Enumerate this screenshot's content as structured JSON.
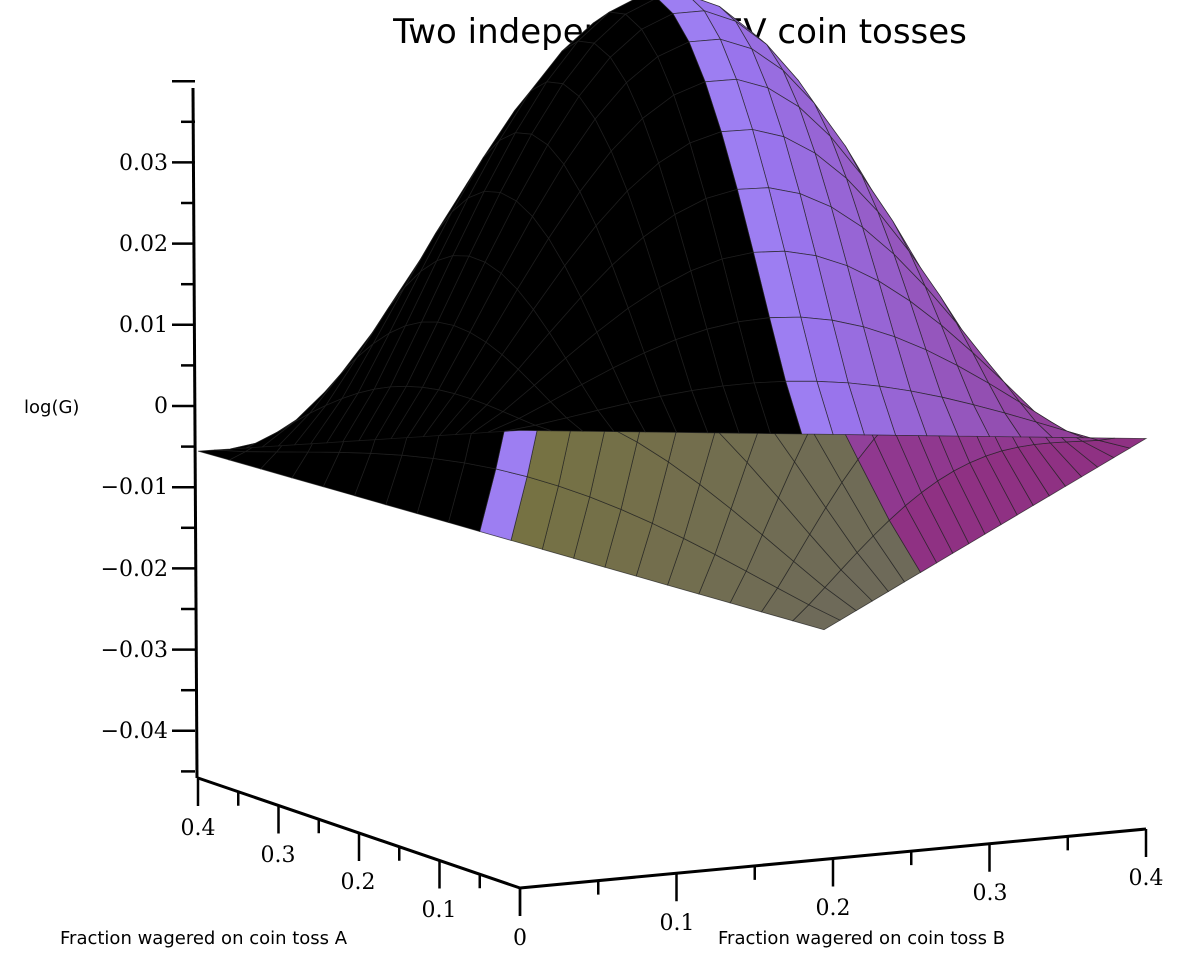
{
  "chart_data": {
    "type": "surface3d",
    "title": "Two independent +EV coin tosses",
    "xlabel": "Fraction wagered on coin toss A",
    "ylabel": "Fraction wagered on coin toss B",
    "zlabel": "log(G)",
    "x_range": [
      0,
      0.4
    ],
    "y_range": [
      0,
      0.4
    ],
    "z_range": [
      -0.045,
      0.04
    ],
    "z_ticks": [
      "0.03",
      "0.02",
      "0.01",
      "0",
      "−0.01",
      "−0.02",
      "−0.03",
      "−0.04"
    ],
    "x_ticks": [
      "0.1",
      "0.2",
      "0.3",
      "0.4"
    ],
    "y_ticks": [
      "0",
      "0.1",
      "0.2",
      "0.3",
      "0.4"
    ],
    "grid_divisions": 20,
    "surface": {
      "z_at_origin": -0.003,
      "z_peak": 0.036,
      "z_at_A_0_4": -0.013,
      "z_at_B_0_4": -0.008,
      "z_at_A_0_4_B_0_4": -0.039
    },
    "colors": {
      "cyan": "#6fe8e3",
      "light": "#d8ecfa",
      "violet": "#9a78f2",
      "magenta": "#8e2d7d",
      "olive": "#7f7a2a",
      "mesh": "#222222"
    }
  }
}
